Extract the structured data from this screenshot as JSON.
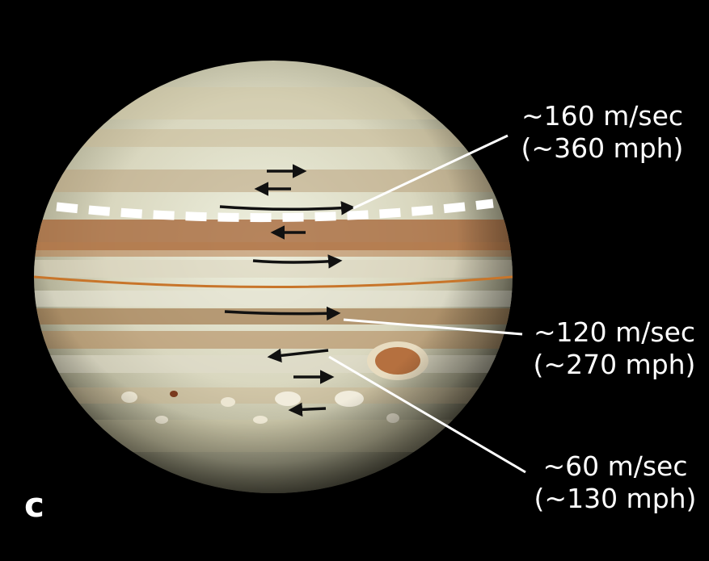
{
  "panel_letter": "c",
  "labels": [
    {
      "speed": "~160 m/sec",
      "mph": "(~360 mph)"
    },
    {
      "speed": "~120 m/sec",
      "mph": "(~270 mph)"
    },
    {
      "speed": "~60 m/sec",
      "mph": "(~130 mph)"
    }
  ],
  "colors": {
    "background": "#000000",
    "text": "#ffffff",
    "arrow": "#111111",
    "dashed_line": "#ffffff",
    "equator_line": "#c8752a",
    "pointer_line": "#ffffff"
  },
  "icons": [
    "jupiter-planet-image",
    "wind-arrow",
    "great-red-spot"
  ]
}
